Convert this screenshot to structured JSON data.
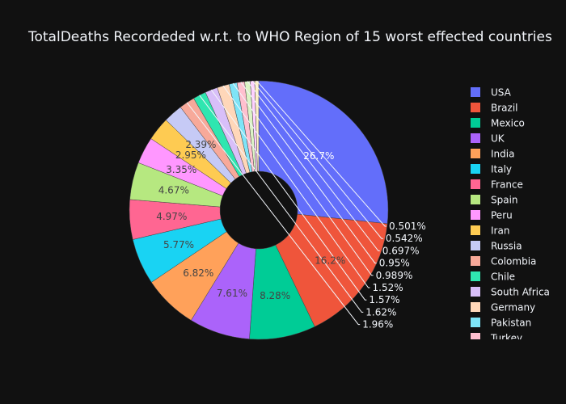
{
  "chart_data": {
    "type": "pie",
    "hole": true,
    "title": "TotalDeaths Recordeded w.r.t. to WHO Region of 15 worst effected countries",
    "legend_position": "right",
    "slices": [
      {
        "name": "USA",
        "label": "26.7%",
        "value": 26.7,
        "color": "#636efa"
      },
      {
        "name": "Brazil",
        "label": "16.2%",
        "value": 16.2,
        "color": "#ef553b"
      },
      {
        "name": "Mexico",
        "label": "8.28%",
        "value": 8.28,
        "color": "#00cc96"
      },
      {
        "name": "UK",
        "label": "7.61%",
        "value": 7.61,
        "color": "#ab63fa"
      },
      {
        "name": "India",
        "label": "6.82%",
        "value": 6.82,
        "color": "#ffa15a"
      },
      {
        "name": "Italy",
        "label": "5.77%",
        "value": 5.77,
        "color": "#19d3f3"
      },
      {
        "name": "France",
        "label": "4.97%",
        "value": 4.97,
        "color": "#ff6692"
      },
      {
        "name": "Spain",
        "label": "4.67%",
        "value": 4.67,
        "color": "#b6e880"
      },
      {
        "name": "Peru",
        "label": "3.35%",
        "value": 3.35,
        "color": "#ff97ff"
      },
      {
        "name": "Iran",
        "label": "2.95%",
        "value": 2.95,
        "color": "#fecb52"
      },
      {
        "name": "Russia",
        "label": "2.39%",
        "value": 2.39,
        "color": "#c6caf6"
      },
      {
        "name": "Colombia",
        "label": "1.96%",
        "value": 1.96,
        "color": "#f7a99a"
      },
      {
        "name": "Chile",
        "label": "1.62%",
        "value": 1.62,
        "color": "#2fe6b0"
      },
      {
        "name": "South Africa",
        "label": "1.57%",
        "value": 1.57,
        "color": "#d8bff9"
      },
      {
        "name": "Germany",
        "label": "1.52%",
        "value": 1.52,
        "color": "#ffd7b9"
      },
      {
        "name": "Pakistan",
        "label": "0.989%",
        "value": 0.989,
        "color": "#7ee4f7"
      },
      {
        "name": "Turkey",
        "label": "0.95%",
        "value": 0.95,
        "color": "#ffc0cf"
      },
      {
        "name": "",
        "label": "0.697%",
        "value": 0.697,
        "color": "#dcf4c5"
      },
      {
        "name": "",
        "label": "0.542%",
        "value": 0.542,
        "color": "#ffd1ff"
      },
      {
        "name": "",
        "label": "0.501%",
        "value": 0.501,
        "color": "#fff1c5"
      }
    ]
  }
}
